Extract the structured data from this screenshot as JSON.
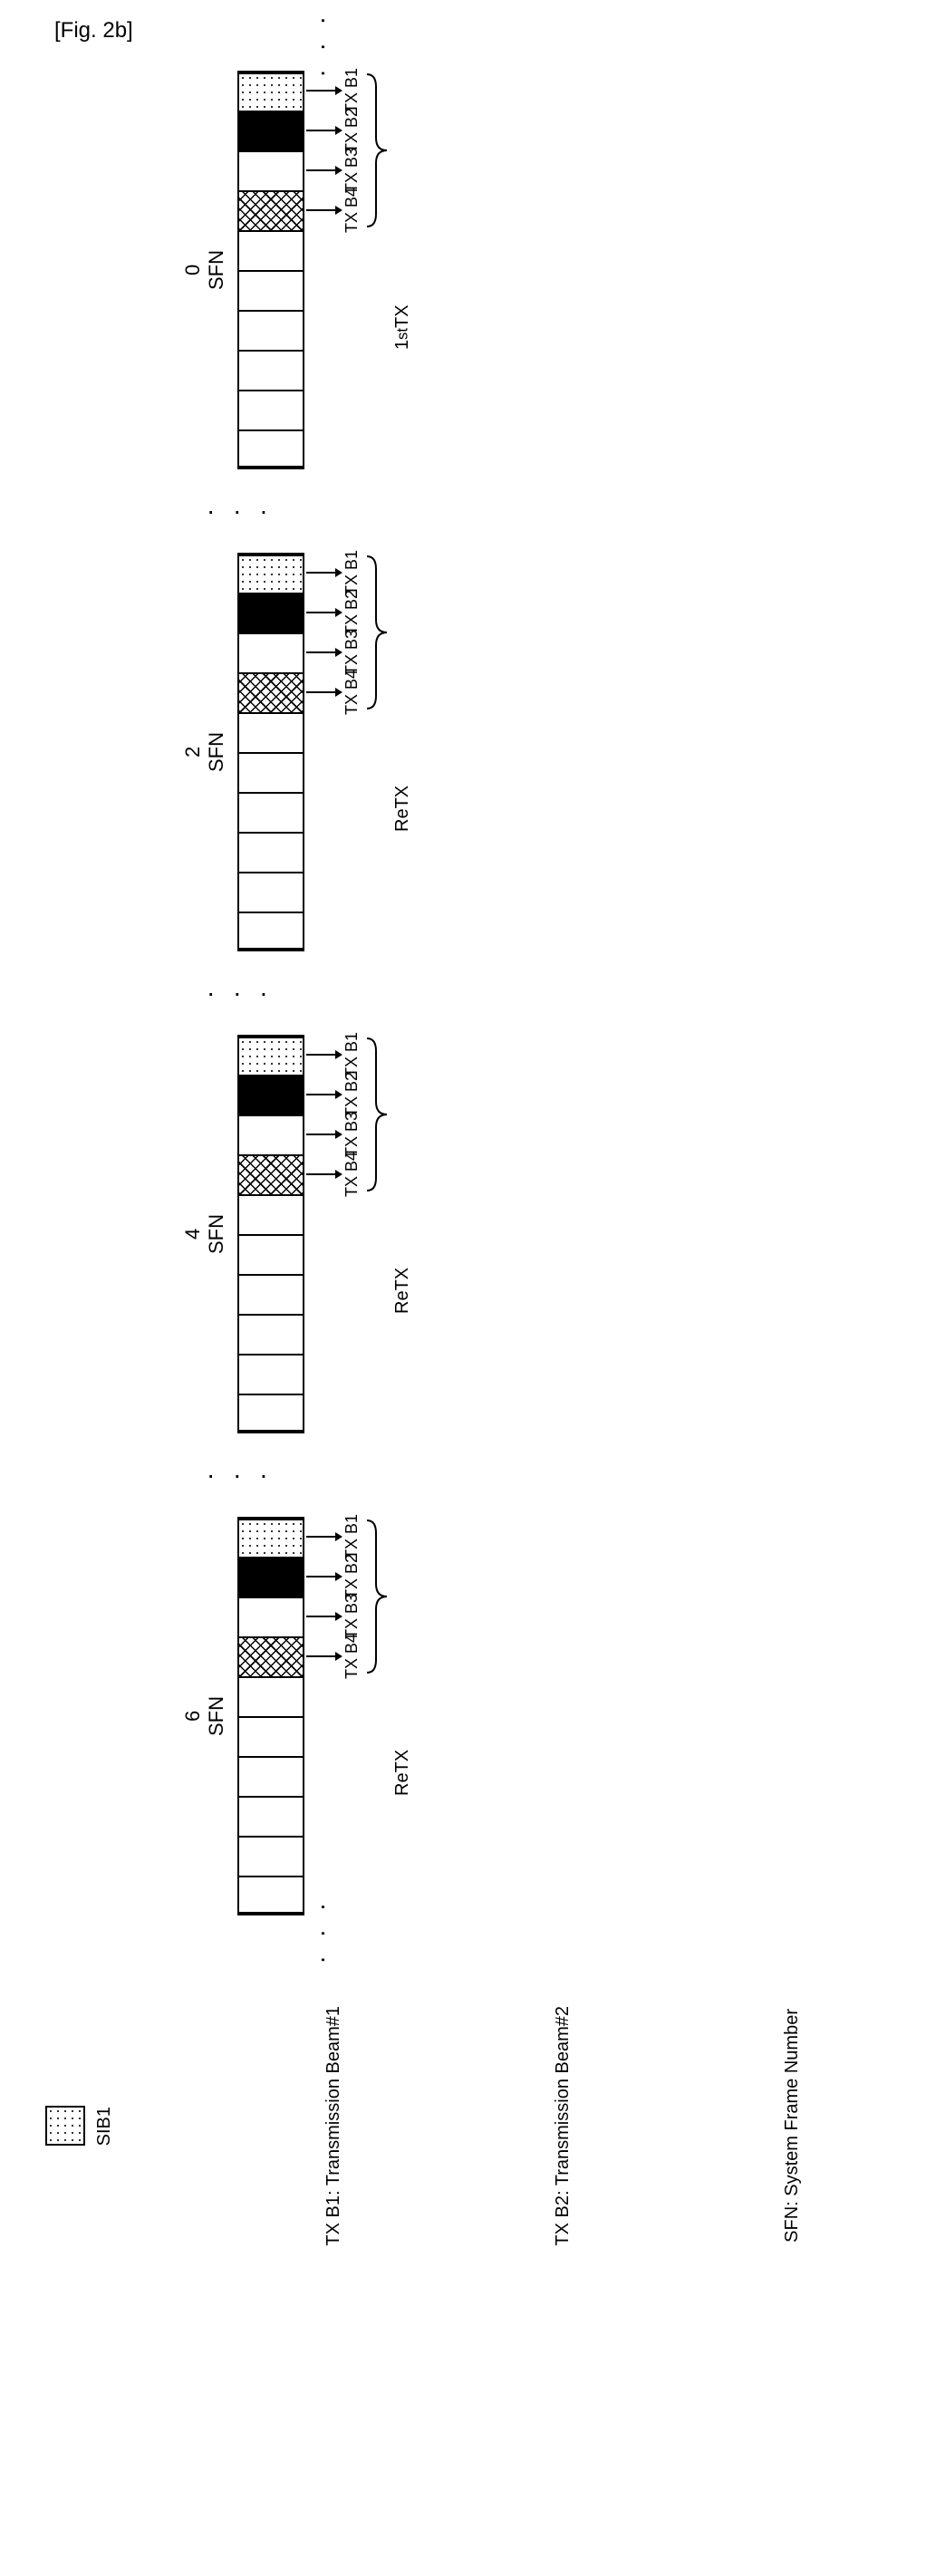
{
  "figure_label": "[Fig. 2b]",
  "frames": [
    {
      "sfn": "SFN 0",
      "retx_label": "1st TX",
      "show_dots_before": true,
      "show_dots_after": false,
      "slots": [
        {
          "fill": "dotted",
          "tx": "TX B1"
        },
        {
          "fill": "solid-black",
          "tx": "TX B2"
        },
        {
          "fill": "white",
          "tx": "TX B3"
        },
        {
          "fill": "crosshatch",
          "tx": "TX B4"
        }
      ],
      "empty_slots_after": 6
    },
    {
      "sfn": "SFN 2",
      "retx_label": "ReTX",
      "show_dots_before": false,
      "show_dots_after": false,
      "slots": [
        {
          "fill": "dotted",
          "tx": "TX B1"
        },
        {
          "fill": "solid-black",
          "tx": "TX B2"
        },
        {
          "fill": "white",
          "tx": "TX B3"
        },
        {
          "fill": "crosshatch",
          "tx": "TX B4"
        }
      ],
      "empty_slots_after": 6
    },
    {
      "sfn": "SFN 4",
      "retx_label": "ReTX",
      "show_dots_before": false,
      "show_dots_after": false,
      "slots": [
        {
          "fill": "dotted",
          "tx": "TX B1"
        },
        {
          "fill": "solid-black",
          "tx": "TX B2"
        },
        {
          "fill": "white",
          "tx": "TX B3"
        },
        {
          "fill": "crosshatch",
          "tx": "TX B4"
        }
      ],
      "empty_slots_after": 6
    },
    {
      "sfn": "SFN 6",
      "retx_label": "ReTX",
      "show_dots_before": false,
      "show_dots_after": true,
      "slots": [
        {
          "fill": "dotted",
          "tx": "TX B1"
        },
        {
          "fill": "solid-black",
          "tx": "TX B2"
        },
        {
          "fill": "white",
          "tx": "TX B3"
        },
        {
          "fill": "crosshatch",
          "tx": "TX B4"
        }
      ],
      "empty_slots_after": 6
    }
  ],
  "legend": {
    "sib1": "SIB1"
  },
  "footer": {
    "txb1": "TX B1: Transmission Beam#1",
    "txb2": "TX B2: Transmission Beam#2",
    "sfn": "SFN: System Frame Number"
  },
  "ellipsis": "⋯",
  "colors": {
    "stroke": "#000000",
    "background": "#ffffff"
  }
}
